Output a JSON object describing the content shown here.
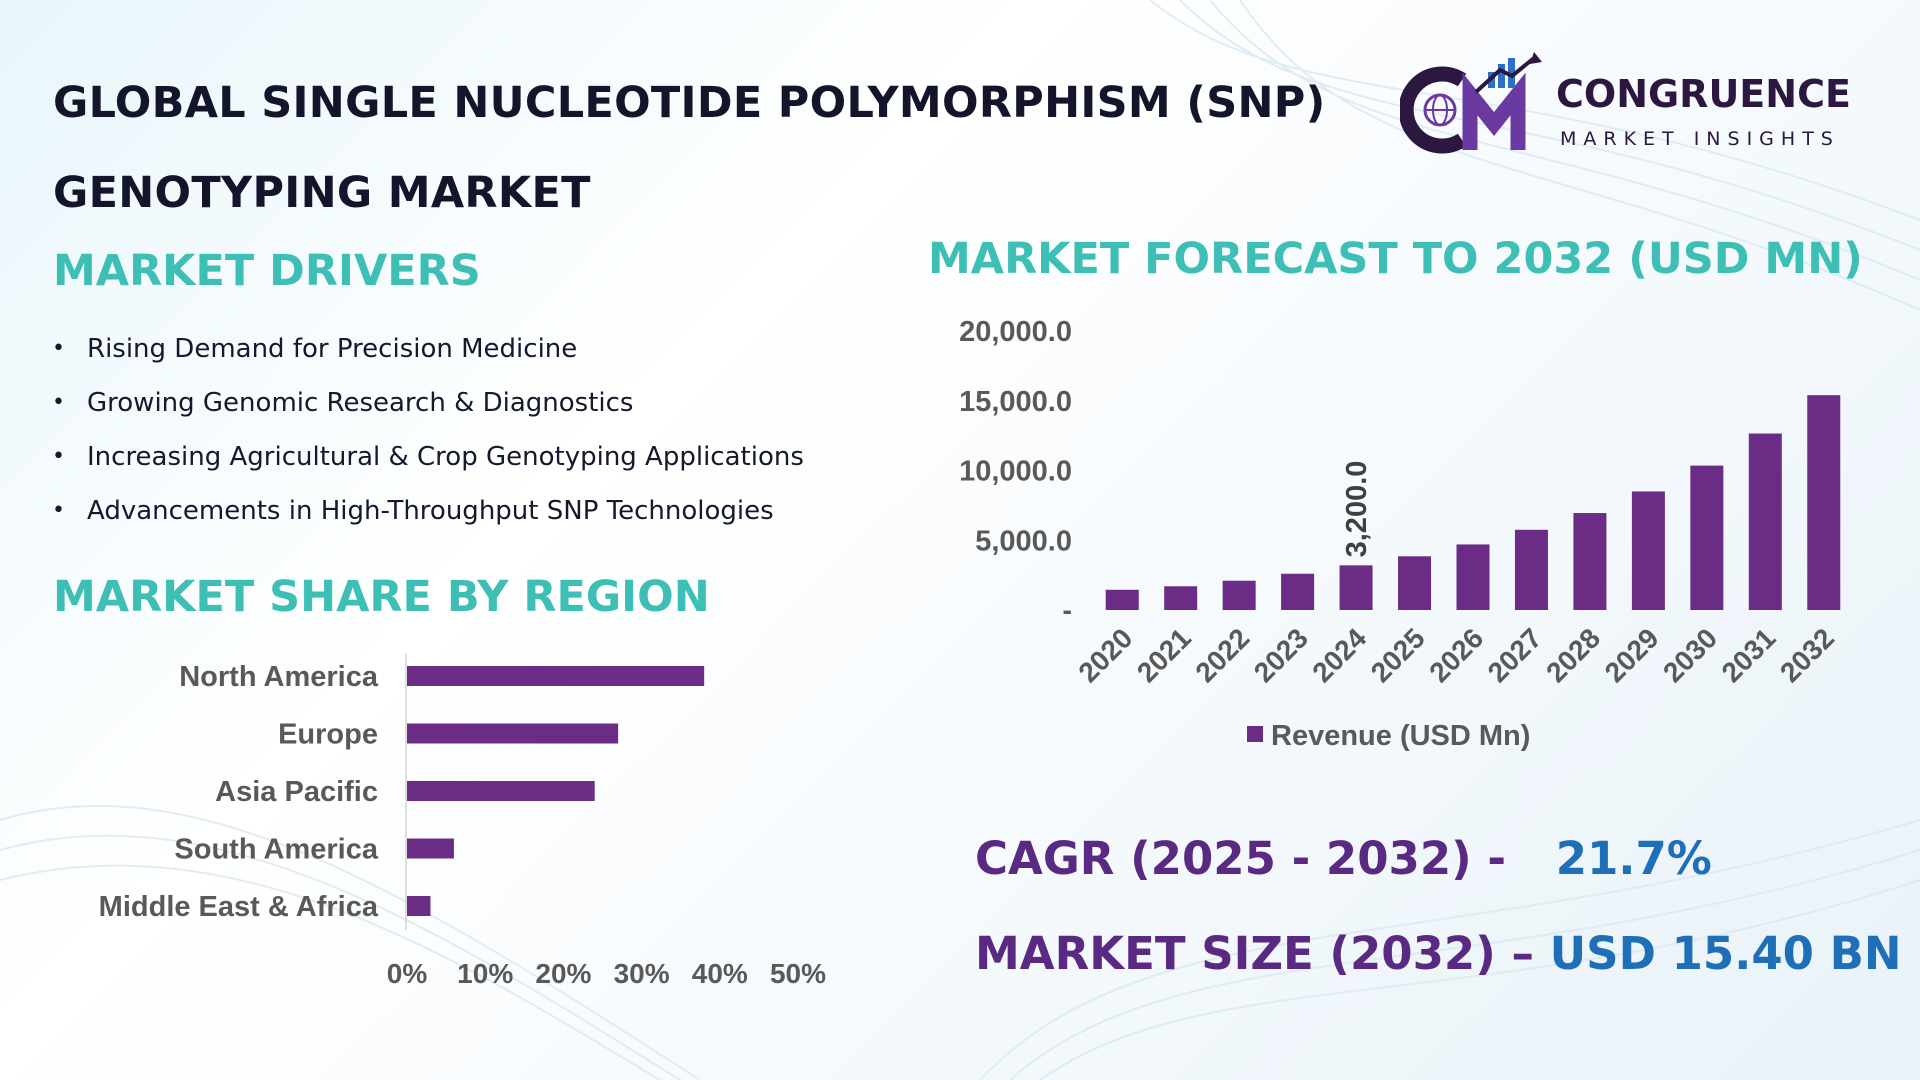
{
  "header": {
    "title_line1": "GLOBAL SINGLE NUCLEOTIDE POLYMORPHISM (SNP)",
    "title_line2": "GENOTYPING MARKET"
  },
  "logo": {
    "name": "CONGRUENCE",
    "tagline": "MARKET INSIGHTS",
    "colors": {
      "dark": "#2b1740",
      "accent": "#6a3aa0",
      "blue": "#2a6fc9"
    }
  },
  "drivers": {
    "heading": "MARKET DRIVERS",
    "bullet": "•",
    "items": [
      "Rising Demand for Precision Medicine",
      "Growing Genomic Research & Diagnostics",
      "Increasing Agricultural & Crop Genotyping Applications",
      "Advancements in High-Throughput SNP Technologies"
    ]
  },
  "region": {
    "heading": "MARKET SHARE BY REGION"
  },
  "forecast": {
    "heading": "MARKET FORECAST TO 2032 (USD MN)"
  },
  "stats": {
    "cagr_label": "CAGR (2025 - 2032) -",
    "cagr_value": "21.7%",
    "size_label": "MARKET SIZE (2032) –",
    "size_value": "USD 15.40 BN"
  },
  "colors": {
    "bar": "#6a2c84",
    "heading_teal": "#3dbfb5",
    "stat_purple": "#5a2a82",
    "stat_blue": "#1f6fb8",
    "axis_text": "#595959",
    "title": "#14142b"
  },
  "chart_data": [
    {
      "type": "bar",
      "orientation": "horizontal",
      "categories": [
        "North America",
        "Europe",
        "Asia Pacific",
        "South America",
        "Middle East & Africa"
      ],
      "values": [
        38,
        27,
        24,
        6,
        3
      ],
      "xlim": [
        0,
        50
      ],
      "x_ticks": [
        "0%",
        "10%",
        "20%",
        "30%",
        "40%",
        "50%"
      ],
      "grid": false,
      "legend": "none"
    },
    {
      "type": "bar",
      "orientation": "vertical",
      "categories": [
        "2020",
        "2021",
        "2022",
        "2023",
        "2024",
        "2025",
        "2026",
        "2027",
        "2028",
        "2029",
        "2030",
        "2031",
        "2032"
      ],
      "series": [
        {
          "name": "Revenue (USD Mn)",
          "values": [
            1450,
            1700,
            2100,
            2600,
            3200,
            3850,
            4700,
            5750,
            6950,
            8500,
            10350,
            12650,
            15400
          ]
        }
      ],
      "ylim": [
        0,
        20000
      ],
      "y_ticks": [
        "-",
        "5,000.0",
        "10,000.0",
        "15,000.0",
        "20,000.0"
      ],
      "data_labels": [
        {
          "category": "2024",
          "text": "3,200.0"
        }
      ],
      "grid": false,
      "legend": "bottom"
    }
  ]
}
